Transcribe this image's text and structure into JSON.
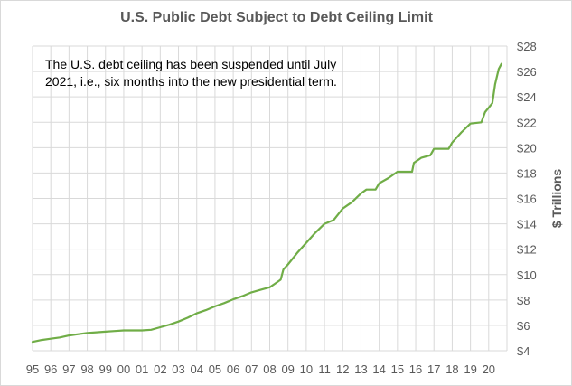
{
  "chart_data": {
    "type": "line",
    "title": "U.S. Public Debt Subject to Debt Ceiling Limit",
    "xlabel": "",
    "ylabel": "$ Trillions",
    "ylim": [
      4,
      28
    ],
    "y_ticks": [
      4,
      6,
      8,
      10,
      12,
      14,
      16,
      18,
      20,
      22,
      24,
      26,
      28
    ],
    "y_tick_labels": [
      "$4",
      "$6",
      "$8",
      "$10",
      "$12",
      "$14",
      "$16",
      "$18",
      "$20",
      "$22",
      "$24",
      "$26",
      "$28"
    ],
    "xlim": [
      1995,
      2021
    ],
    "x_tick_labels": [
      "95",
      "96",
      "97",
      "98",
      "99",
      "00",
      "01",
      "02",
      "03",
      "04",
      "05",
      "06",
      "07",
      "08",
      "09",
      "10",
      "11",
      "12",
      "13",
      "14",
      "15",
      "16",
      "17",
      "18",
      "19",
      "20"
    ],
    "grid": true,
    "line_color": "#70ad47",
    "annotation": {
      "lines": [
        "The U.S. debt ceiling has been suspended until July",
        "2021, i.e., six months into the new presidential term."
      ]
    },
    "series": [
      {
        "values": [
          [
            1995.0,
            4.7
          ],
          [
            1995.5,
            4.85
          ],
          [
            1996.0,
            4.95
          ],
          [
            1996.5,
            5.05
          ],
          [
            1997.0,
            5.2
          ],
          [
            1997.5,
            5.3
          ],
          [
            1998.0,
            5.4
          ],
          [
            1998.5,
            5.45
          ],
          [
            1999.0,
            5.5
          ],
          [
            1999.5,
            5.55
          ],
          [
            2000.0,
            5.6
          ],
          [
            2000.5,
            5.6
          ],
          [
            2001.0,
            5.6
          ],
          [
            2001.5,
            5.65
          ],
          [
            2002.0,
            5.85
          ],
          [
            2002.5,
            6.05
          ],
          [
            2003.0,
            6.3
          ],
          [
            2003.5,
            6.6
          ],
          [
            2004.0,
            6.95
          ],
          [
            2004.5,
            7.2
          ],
          [
            2005.0,
            7.5
          ],
          [
            2005.5,
            7.75
          ],
          [
            2006.0,
            8.05
          ],
          [
            2006.5,
            8.3
          ],
          [
            2007.0,
            8.6
          ],
          [
            2007.5,
            8.8
          ],
          [
            2008.0,
            9.0
          ],
          [
            2008.3,
            9.3
          ],
          [
            2008.6,
            9.6
          ],
          [
            2008.75,
            10.4
          ],
          [
            2009.0,
            10.8
          ],
          [
            2009.5,
            11.7
          ],
          [
            2010.0,
            12.5
          ],
          [
            2010.5,
            13.3
          ],
          [
            2011.0,
            14.0
          ],
          [
            2011.5,
            14.3
          ],
          [
            2012.0,
            15.2
          ],
          [
            2012.5,
            15.7
          ],
          [
            2013.0,
            16.4
          ],
          [
            2013.3,
            16.7
          ],
          [
            2013.8,
            16.7
          ],
          [
            2014.0,
            17.2
          ],
          [
            2014.5,
            17.6
          ],
          [
            2015.0,
            18.1
          ],
          [
            2015.8,
            18.1
          ],
          [
            2015.9,
            18.8
          ],
          [
            2016.3,
            19.2
          ],
          [
            2016.8,
            19.4
          ],
          [
            2017.0,
            19.9
          ],
          [
            2017.8,
            19.9
          ],
          [
            2018.0,
            20.4
          ],
          [
            2018.5,
            21.2
          ],
          [
            2019.0,
            21.9
          ],
          [
            2019.6,
            22.0
          ],
          [
            2019.8,
            22.8
          ],
          [
            2020.2,
            23.5
          ],
          [
            2020.35,
            25.0
          ],
          [
            2020.55,
            26.2
          ],
          [
            2020.7,
            26.6
          ]
        ]
      }
    ]
  }
}
